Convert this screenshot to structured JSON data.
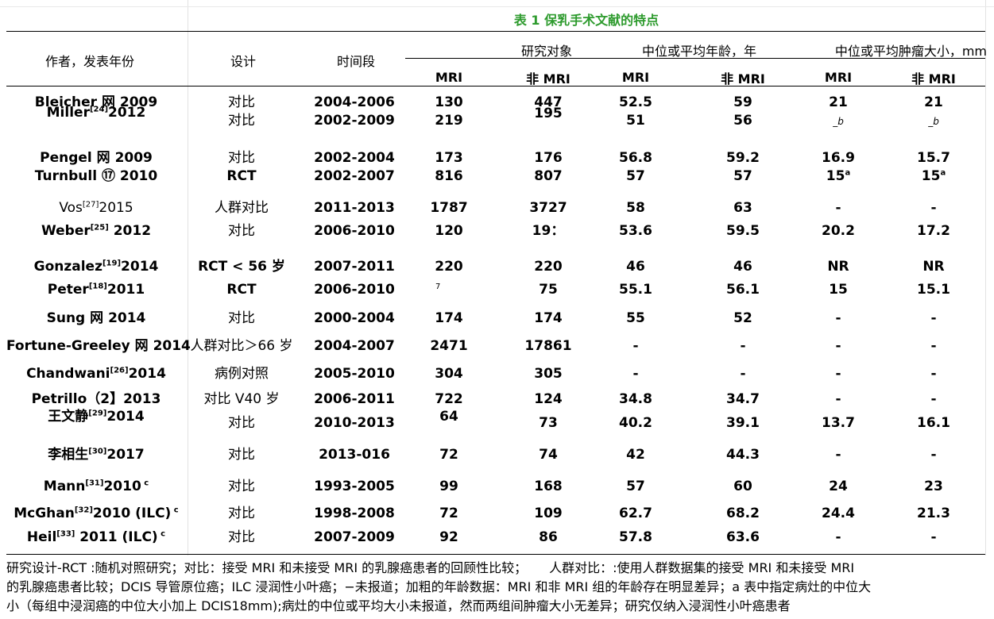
{
  "title": "表 1 保乳手术文献的特点",
  "headers": {
    "author": "作者，发表年份",
    "design": "设计",
    "period": "时间段",
    "subjects": "研究对象",
    "age": "中位或平均年龄，年",
    "tumor": "中位或平均肿瘤大小，mm",
    "mri": "MRI",
    "non_mri": "非 MRI"
  },
  "rows": [
    {
      "author": "Bleicher 网  2009",
      "design": "对比",
      "period": "2004-2006",
      "n_mri": "130",
      "n_non": "447",
      "age_mri": "52.5",
      "age_non": "59",
      "size_mri": "21",
      "size_non": "21"
    },
    {
      "author": "Miller",
      "sup": "[24]",
      "year": "2012",
      "design": "对比",
      "period": "2002-2009",
      "n_mri": "219",
      "n_non": "195",
      "age_mri": "51",
      "age_non": "56",
      "size_mri": "_b",
      "size_non": "_b"
    },
    {
      "author": "Pengel 网  2009",
      "design": "对比",
      "period": "2002-2004",
      "n_mri": "173",
      "n_non": "176",
      "age_mri": "56.8",
      "age_non": "59.2",
      "size_mri": "16.9",
      "size_non": "15.7"
    },
    {
      "author": "Turnbull ⑰  2010",
      "design": "RCT",
      "period": "2002-2007",
      "n_mri": "816",
      "n_non": "807",
      "age_mri": "57",
      "age_non": "57",
      "size_mri": "15",
      "size_mri_sup": "a",
      "size_non": "15",
      "size_non_sup": "a"
    },
    {
      "author": "Vos",
      "sup": "[27]",
      "year": "2015",
      "design": "人群对比",
      "period": "2011-2013",
      "n_mri": "1787",
      "n_non": "3727",
      "age_mri": "58",
      "age_non": "63",
      "size_mri": "-",
      "size_non": "-"
    },
    {
      "author": "Weber",
      "sup": "[25]",
      "year": " 2012",
      "design": "对比",
      "period": "2006-2010",
      "n_mri": "120",
      "n_non": "19：",
      "age_mri": "53.6",
      "age_non": "59.5",
      "size_mri": "20.2",
      "size_non": "17.2"
    },
    {
      "author": "Gonzalez",
      "sup": "[19]",
      "year": "2014",
      "design": "RCT < 56 岁",
      "period": "2007-2011",
      "n_mri": "220",
      "n_non": "220",
      "age_mri": "46",
      "age_non": "46",
      "size_mri": "NR",
      "size_non": "NR"
    },
    {
      "author": "Peter",
      "sup": "[18]",
      "year": "2011",
      "design": "RCT",
      "period": "2006-2010",
      "n_mri": "7",
      "n_non": "75",
      "age_mri": "55.1",
      "age_non": "56.1",
      "size_mri": "15",
      "size_non": "15.1"
    },
    {
      "author": "Sung 网  2014",
      "design": "对比",
      "period": "2000-2004",
      "n_mri": "174",
      "n_non": "174",
      "age_mri": "55",
      "age_non": "52",
      "size_mri": "-",
      "size_non": "-"
    },
    {
      "author": "Fortune-Greeley 网  2014",
      "design": "人群对比＞66 岁",
      "period": "2004-2007",
      "n_mri": "2471",
      "n_non": "17861",
      "age_mri": "-",
      "age_non": "-",
      "size_mri": "-",
      "size_non": "-"
    },
    {
      "author": "Chandwani",
      "sup": "[26]",
      "year": "2014",
      "design": "病例对照",
      "period": "2005-2010",
      "n_mri": "304",
      "n_non": "305",
      "age_mri": "-",
      "age_non": "-",
      "size_mri": "-",
      "size_non": "-"
    },
    {
      "author": "Petrillo（2】2013",
      "design": "对比 V40 岁",
      "period": "2006-2011",
      "n_mri": "722",
      "n_non": "124",
      "age_mri": "34.8",
      "age_non": "34.7",
      "size_mri": "-",
      "size_non": "-"
    },
    {
      "author": "王文静",
      "sup": "[29]",
      "year": "2014",
      "design": "对比",
      "period": "2010-2013",
      "n_mri": "64",
      "n_non": "73",
      "age_mri": "40.2",
      "age_non": "39.1",
      "size_mri": "13.7",
      "size_non": "16.1"
    },
    {
      "author": "李相生",
      "sup": "[30]",
      "year": "2017",
      "design": "对比",
      "period": "2013-016",
      "n_mri": "72",
      "n_non": "74",
      "age_mri": "42",
      "age_non": "44.3",
      "size_mri": "-",
      "size_non": "-"
    },
    {
      "author": "Mann",
      "sup": "[31]",
      "year": "2010",
      "tail_sup": "c",
      "design": "对比",
      "period": "1993-2005",
      "n_mri": "99",
      "n_non": "168",
      "age_mri": "57",
      "age_non": "60",
      "size_mri": "24",
      "size_non": "23"
    },
    {
      "author": "McGhan",
      "sup": "[32]",
      "year": "2010 (ILC)",
      "tail_sup": "c",
      "design": "对比",
      "period": "1998-2008",
      "n_mri": "72",
      "n_non": "109",
      "age_mri": "62.7",
      "age_non": "68.2",
      "size_mri": "24.4",
      "size_non": "21.3"
    },
    {
      "author": "Heil",
      "sup": "[33]",
      "year": " 2011 (ILC)",
      "tail_sup": "c",
      "design": "对比",
      "period": "2007-2009",
      "n_mri": "92",
      "n_non": "86",
      "age_mri": "57.8",
      "age_non": "63.6",
      "size_mri": "-",
      "size_non": "-"
    }
  ],
  "footnote": {
    "line1a": "研究设计-RCT :随机对照研究；对比：接受 MRI 和未接受 MRI 的乳腺癌患者的回顾性比较；",
    "line1b": "人群对比：:使用人群数据集的接受 MRI 和未接受 MRI",
    "line2": "的乳腺癌患者比较；DCIS 导管原位癌；ILC 浸润性小叶癌；−未报道；加粗的年龄数据：MRI 和非 MRI 组的年龄存在明显差异；a 表中指定病灶的中位大",
    "line3": "小（每组中浸润癌的中位大小加上 DCIS18mm);病灶的中位或平均大小未报道，然而两组间肿瘤大小无差异；研究仅纳入浸润性小叶癌患者"
  }
}
